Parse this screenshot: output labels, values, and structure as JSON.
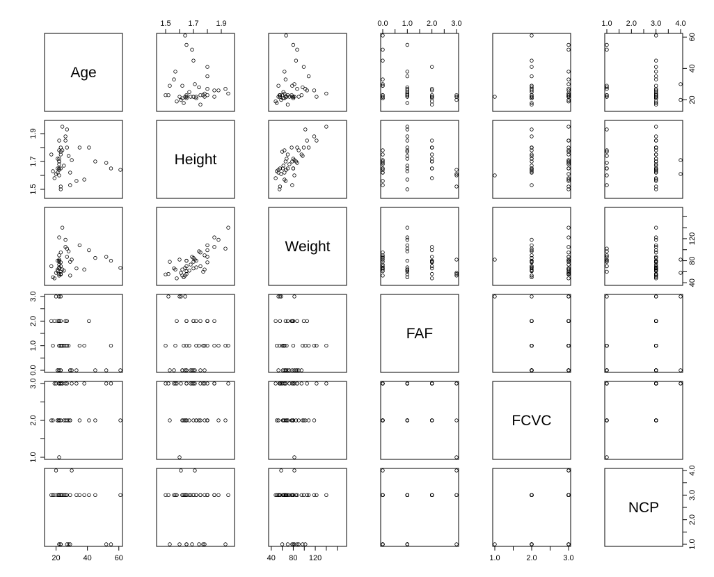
{
  "chart_data": {
    "type": "scatter",
    "subtype": "scatterplot-matrix",
    "title": "",
    "grid": false,
    "point_style": "open-circle",
    "point_color": "#000000",
    "variables": [
      "Age",
      "Height",
      "Weight",
      "FAF",
      "FCVC",
      "NCP"
    ],
    "ranges": {
      "Age": [
        14,
        61
      ],
      "Height": [
        1.45,
        1.98
      ],
      "Weight": [
        39,
        173
      ],
      "FAF": [
        0,
        3
      ],
      "FCVC": [
        1,
        3
      ],
      "NCP": [
        1,
        4
      ]
    },
    "ticks": {
      "Age": {
        "values": [
          20,
          40,
          60
        ],
        "labels": [
          "20",
          "40",
          "60"
        ]
      },
      "Height": {
        "values": [
          1.5,
          1.6,
          1.7,
          1.8,
          1.9
        ],
        "labels": [
          "1.5",
          "",
          "1.7",
          "",
          "1.9"
        ]
      },
      "Weight": {
        "values": [
          40,
          60,
          80,
          100,
          120,
          140,
          160
        ],
        "labels": [
          "40",
          "",
          "80",
          "",
          "120",
          "",
          ""
        ]
      },
      "FAF": {
        "values": [
          0,
          0.5,
          1,
          1.5,
          2,
          2.5,
          3
        ],
        "labels": [
          "0.0",
          "",
          "1.0",
          "",
          "2.0",
          "",
          "3.0"
        ]
      },
      "FCVC": {
        "values": [
          1,
          1.5,
          2,
          2.5,
          3
        ],
        "labels": [
          "1.0",
          "",
          "2.0",
          "",
          "3.0"
        ]
      },
      "NCP": {
        "values": [
          1,
          1.5,
          2,
          2.5,
          3,
          3.5,
          4
        ],
        "labels": [
          "1.0",
          "",
          "2.0",
          "",
          "3.0",
          "",
          "4.0"
        ]
      }
    },
    "axis_placement": {
      "top": [
        "Height",
        "FAF",
        "NCP"
      ],
      "bottom": [
        "Age",
        "Weight",
        "FCVC"
      ],
      "left": [
        "Height",
        "FAF",
        "FCVC"
      ],
      "right": [
        "Age",
        "Weight",
        "NCP"
      ]
    },
    "sample_points": [
      [
        21,
        1.62,
        64,
        0,
        2,
        3
      ],
      [
        23,
        1.52,
        56,
        3,
        3,
        3
      ],
      [
        23,
        1.8,
        77,
        2,
        2,
        3
      ],
      [
        27,
        1.8,
        87,
        2,
        3,
        3
      ],
      [
        22,
        1.78,
        89.8,
        0,
        2,
        1
      ],
      [
        29,
        1.62,
        53,
        0,
        2,
        3
      ],
      [
        23,
        1.5,
        55,
        1,
        3,
        3
      ],
      [
        22,
        1.64,
        53,
        3,
        2,
        3
      ],
      [
        24,
        1.78,
        64,
        1,
        3,
        3
      ],
      [
        22,
        1.72,
        68,
        1,
        2,
        3
      ],
      [
        26,
        1.85,
        105,
        2,
        3,
        3
      ],
      [
        21,
        1.72,
        80,
        2,
        2,
        3
      ],
      [
        22,
        1.65,
        56,
        2,
        3,
        3
      ],
      [
        41,
        1.8,
        99,
        2,
        2,
        3
      ],
      [
        23,
        1.77,
        60,
        1,
        3,
        1
      ],
      [
        22,
        1.7,
        66,
        2,
        3,
        3
      ],
      [
        27,
        1.93,
        102,
        1,
        2,
        1
      ],
      [
        29,
        1.53,
        78,
        0,
        2,
        1
      ],
      [
        30,
        1.71,
        82,
        0,
        3,
        4
      ],
      [
        23,
        1.65,
        70,
        0,
        2,
        1
      ],
      [
        22,
        1.65,
        80,
        2,
        2,
        3
      ],
      [
        52,
        1.69,
        87,
        0,
        3,
        1
      ],
      [
        22,
        1.6,
        82,
        3,
        1,
        1
      ],
      [
        22,
        1.85,
        122.3,
        1,
        3,
        3
      ],
      [
        21,
        1.65,
        61,
        0,
        2,
        3
      ],
      [
        38,
        1.57,
        64,
        1,
        3,
        3
      ],
      [
        25,
        1.67,
        62,
        1,
        2,
        3
      ],
      [
        35,
        1.8,
        108,
        1,
        2,
        3
      ],
      [
        22,
        1.7,
        78,
        2,
        3,
        3
      ],
      [
        23,
        1.75,
        95,
        0,
        3,
        3
      ],
      [
        18,
        1.63,
        50,
        1,
        2,
        3
      ],
      [
        55,
        1.65,
        80,
        1,
        3,
        1
      ],
      [
        61,
        1.64,
        67,
        0,
        2,
        3
      ],
      [
        19,
        1.58,
        48,
        2,
        3,
        3
      ],
      [
        26,
        1.88,
        118,
        1,
        2,
        3
      ],
      [
        33,
        1.56,
        66,
        0,
        3,
        3
      ],
      [
        17,
        1.75,
        70,
        2,
        2,
        3
      ],
      [
        20,
        1.61,
        58,
        3,
        3,
        4
      ],
      [
        45,
        1.7,
        85,
        0,
        2,
        3
      ],
      [
        24,
        1.95,
        140,
        1,
        3,
        3
      ],
      [
        28,
        1.74,
        97,
        1,
        2,
        1
      ],
      [
        22,
        1.68,
        73,
        0,
        3,
        3
      ]
    ]
  }
}
